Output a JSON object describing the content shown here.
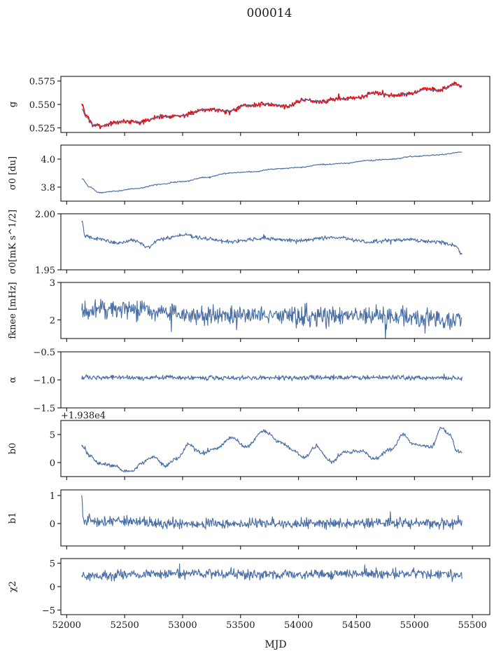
{
  "figure": {
    "title": "000014",
    "xlabel": "MJD",
    "xlim": [
      51950,
      55650
    ],
    "xticks": [
      52000,
      52500,
      53000,
      53500,
      54000,
      54500,
      55000,
      55500
    ]
  },
  "chart_data": [
    {
      "id": "g",
      "type": "line",
      "ylabel": "g",
      "ylim": [
        0.52,
        0.58
      ],
      "yticks": [
        "0.525",
        "0.550",
        "0.575"
      ],
      "ytick_values": [
        0.525,
        0.55,
        0.575
      ],
      "x_range": [
        52130,
        55410
      ],
      "series": [
        {
          "color": "#ff0000",
          "noise": 0.0025,
          "knots": [
            [
              52130,
              0.55
            ],
            [
              52170,
              0.538
            ],
            [
              52230,
              0.528
            ],
            [
              52300,
              0.527
            ],
            [
              52400,
              0.53
            ],
            [
              52500,
              0.532
            ],
            [
              52650,
              0.531
            ],
            [
              52800,
              0.537
            ],
            [
              53000,
              0.538
            ],
            [
              53200,
              0.545
            ],
            [
              53400,
              0.543
            ],
            [
              53550,
              0.549
            ],
            [
              53750,
              0.55
            ],
            [
              53900,
              0.548
            ],
            [
              54050,
              0.555
            ],
            [
              54200,
              0.553
            ],
            [
              54350,
              0.556
            ],
            [
              54500,
              0.557
            ],
            [
              54650,
              0.562
            ],
            [
              54800,
              0.56
            ],
            [
              54950,
              0.561
            ],
            [
              55100,
              0.567
            ],
            [
              55200,
              0.565
            ],
            [
              55270,
              0.568
            ],
            [
              55330,
              0.572
            ],
            [
              55410,
              0.57
            ]
          ]
        },
        {
          "color": "#4a6fa5",
          "noise": 0.0004,
          "knots": [
            [
              52130,
              0.545
            ],
            [
              52170,
              0.536
            ],
            [
              52230,
              0.528
            ],
            [
              52300,
              0.527
            ],
            [
              52400,
              0.53
            ],
            [
              52500,
              0.532
            ],
            [
              52650,
              0.531
            ],
            [
              52800,
              0.537
            ],
            [
              53000,
              0.538
            ],
            [
              53200,
              0.545
            ],
            [
              53400,
              0.543
            ],
            [
              53550,
              0.549
            ],
            [
              53750,
              0.55
            ],
            [
              53900,
              0.548
            ],
            [
              54050,
              0.555
            ],
            [
              54200,
              0.553
            ],
            [
              54350,
              0.556
            ],
            [
              54500,
              0.557
            ],
            [
              54650,
              0.562
            ],
            [
              54800,
              0.56
            ],
            [
              54950,
              0.561
            ],
            [
              55100,
              0.566
            ],
            [
              55200,
              0.565
            ],
            [
              55270,
              0.567
            ],
            [
              55330,
              0.571
            ],
            [
              55410,
              0.57
            ]
          ]
        }
      ]
    },
    {
      "id": "sigma0-du",
      "type": "line",
      "ylabel": "σ0 [du]",
      "ylim": [
        3.7,
        4.1
      ],
      "yticks": [
        "3.8",
        "4.0"
      ],
      "ytick_values": [
        3.8,
        4.0
      ],
      "x_range": [
        52130,
        55410
      ],
      "series": [
        {
          "color": "#4a6fa5",
          "noise": 0.004,
          "knots": [
            [
              52130,
              3.86
            ],
            [
              52200,
              3.8
            ],
            [
              52280,
              3.76
            ],
            [
              52400,
              3.77
            ],
            [
              52600,
              3.79
            ],
            [
              52800,
              3.82
            ],
            [
              53000,
              3.84
            ],
            [
              53200,
              3.87
            ],
            [
              53400,
              3.9
            ],
            [
              53600,
              3.91
            ],
            [
              53800,
              3.93
            ],
            [
              54000,
              3.94
            ],
            [
              54200,
              3.96
            ],
            [
              54400,
              3.97
            ],
            [
              54600,
              3.99
            ],
            [
              54800,
              4.0
            ],
            [
              55000,
              4.02
            ],
            [
              55200,
              4.03
            ],
            [
              55410,
              4.05
            ]
          ]
        }
      ]
    },
    {
      "id": "sigma0-mk",
      "type": "line",
      "ylabel": "σ0[mK s^1/2]",
      "ylim": [
        1.95,
        2.0
      ],
      "yticks": [
        "1.95",
        "2.00"
      ],
      "ytick_values": [
        1.95,
        2.0
      ],
      "x_range": [
        52130,
        55410
      ],
      "series": [
        {
          "color": "#4a6fa5",
          "noise": 0.0018,
          "knots": [
            [
              52130,
              1.993
            ],
            [
              52160,
              1.98
            ],
            [
              52300,
              1.977
            ],
            [
              52450,
              1.974
            ],
            [
              52600,
              1.976
            ],
            [
              52700,
              1.97
            ],
            [
              52800,
              1.977
            ],
            [
              53000,
              1.981
            ],
            [
              53200,
              1.978
            ],
            [
              53400,
              1.975
            ],
            [
              53700,
              1.978
            ],
            [
              54000,
              1.976
            ],
            [
              54300,
              1.979
            ],
            [
              54600,
              1.975
            ],
            [
              54900,
              1.977
            ],
            [
              55200,
              1.975
            ],
            [
              55350,
              1.972
            ],
            [
              55410,
              1.964
            ]
          ]
        }
      ]
    },
    {
      "id": "fknee",
      "type": "line",
      "ylabel": "fknee [mHz]",
      "ylim": [
        1.5,
        3.0
      ],
      "yticks": [
        "2",
        "3"
      ],
      "ytick_values": [
        2,
        3
      ],
      "x_range": [
        52130,
        55410
      ],
      "series": [
        {
          "color": "#4a6fa5",
          "noise": 0.28,
          "knots": [
            [
              52130,
              2.25
            ],
            [
              52500,
              2.3
            ],
            [
              53000,
              2.15
            ],
            [
              53500,
              2.12
            ],
            [
              54000,
              2.1
            ],
            [
              54500,
              2.08
            ],
            [
              55000,
              2.05
            ],
            [
              55410,
              2.0
            ]
          ]
        }
      ]
    },
    {
      "id": "alpha",
      "type": "line",
      "ylabel": "α",
      "ylim": [
        -1.5,
        -0.5
      ],
      "yticks": [
        "−1.5",
        "−1.0",
        "−0.5"
      ],
      "ytick_values": [
        -1.5,
        -1.0,
        -0.5
      ],
      "x_range": [
        52130,
        55410
      ],
      "series": [
        {
          "color": "#4a6fa5",
          "noise": 0.045,
          "knots": [
            [
              52130,
              -0.96
            ],
            [
              53000,
              -0.96
            ],
            [
              54000,
              -0.96
            ],
            [
              55000,
              -0.96
            ],
            [
              55410,
              -0.97
            ]
          ]
        }
      ]
    },
    {
      "id": "b0",
      "type": "line",
      "ylabel": "b0",
      "ylim": [
        -2.5,
        7.5
      ],
      "yticks": [
        "0",
        "5"
      ],
      "ytick_values": [
        0,
        5
      ],
      "offset_text": "+1.938e4",
      "x_range": [
        52130,
        55410
      ],
      "series": [
        {
          "color": "#4a6fa5",
          "noise": 0.35,
          "knots": [
            [
              52130,
              3.0
            ],
            [
              52200,
              1.2
            ],
            [
              52280,
              -0.2
            ],
            [
              52400,
              -0.5
            ],
            [
              52500,
              -1.5
            ],
            [
              52560,
              -1.6
            ],
            [
              52650,
              0.0
            ],
            [
              52750,
              1.0
            ],
            [
              52850,
              -0.5
            ],
            [
              52950,
              0.6
            ],
            [
              53050,
              3.2
            ],
            [
              53180,
              1.6
            ],
            [
              53300,
              2.6
            ],
            [
              53420,
              4.4
            ],
            [
              53550,
              2.8
            ],
            [
              53700,
              5.6
            ],
            [
              53850,
              3.6
            ],
            [
              53950,
              2.2
            ],
            [
              54050,
              0.9
            ],
            [
              54150,
              2.8
            ],
            [
              54280,
              0.2
            ],
            [
              54400,
              1.8
            ],
            [
              54550,
              2.0
            ],
            [
              54650,
              0.6
            ],
            [
              54800,
              2.4
            ],
            [
              54900,
              5.0
            ],
            [
              55000,
              3.2
            ],
            [
              55150,
              2.8
            ],
            [
              55230,
              6.2
            ],
            [
              55310,
              5.0
            ],
            [
              55360,
              2.2
            ],
            [
              55410,
              1.8
            ]
          ]
        }
      ]
    },
    {
      "id": "b1",
      "type": "line",
      "ylabel": "b1",
      "ylim": [
        -0.8,
        1.2
      ],
      "yticks": [
        "0",
        "1"
      ],
      "ytick_values": [
        0,
        1
      ],
      "x_range": [
        52130,
        55410
      ],
      "series": [
        {
          "color": "#4a6fa5",
          "noise": 0.2,
          "knots": [
            [
              52130,
              1.05
            ],
            [
              52145,
              0.1
            ],
            [
              53000,
              0.0
            ],
            [
              54000,
              0.0
            ],
            [
              55000,
              0.0
            ],
            [
              55410,
              0.0
            ]
          ]
        }
      ]
    },
    {
      "id": "chi2",
      "type": "line",
      "ylabel": "χ2",
      "ylim": [
        -6,
        6
      ],
      "yticks": [
        "−5",
        "0",
        "5"
      ],
      "ytick_values": [
        -5,
        0,
        5
      ],
      "x_range": [
        52130,
        55410
      ],
      "series": [
        {
          "color": "#4a6fa5",
          "noise": 1.1,
          "knots": [
            [
              52130,
              2.4
            ],
            [
              53000,
              2.8
            ],
            [
              54000,
              2.6
            ],
            [
              55000,
              2.8
            ],
            [
              55410,
              2.6
            ]
          ]
        }
      ]
    }
  ]
}
